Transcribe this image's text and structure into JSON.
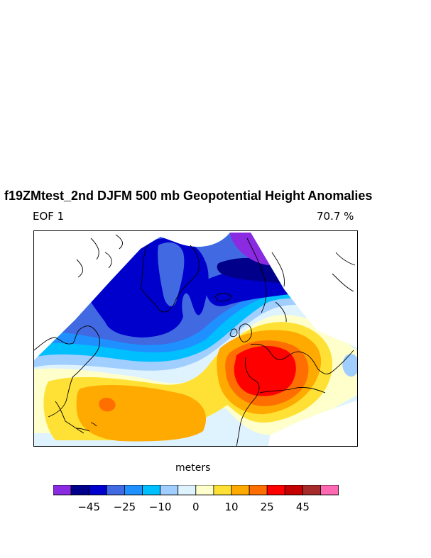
{
  "title": "f19ZMtest_2nd DJFM 500 mb Geopotential Height Anomalies",
  "subtitle_left": "EOF 1",
  "subtitle_right": "70.7 %",
  "units_label": "meters",
  "colorbar": {
    "colors": [
      "#8a2be2",
      "#00008b",
      "#0000cd",
      "#4169e1",
      "#1e90ff",
      "#00bfff",
      "#a0cfff",
      "#dff3ff",
      "#ffffcc",
      "#ffe135",
      "#ffaa00",
      "#ff6e00",
      "#ff0000",
      "#c40000",
      "#a52a2a",
      "#ff69b4"
    ],
    "tick_labels": [
      "−45",
      "−25",
      "−10",
      "0",
      "10",
      "25",
      "45"
    ]
  }
}
